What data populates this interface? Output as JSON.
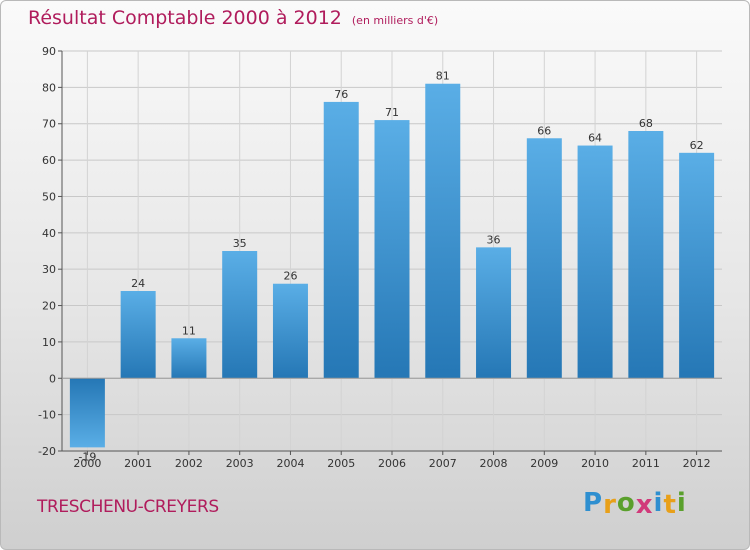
{
  "chart_data": {
    "type": "bar",
    "title": "Résultat Comptable 2000 à 2012",
    "subtitle": "(en milliers d'€)",
    "categories": [
      "2000",
      "2001",
      "2002",
      "2003",
      "2004",
      "2005",
      "2006",
      "2007",
      "2008",
      "2009",
      "2010",
      "2011",
      "2012"
    ],
    "values": [
      -19,
      24,
      11,
      35,
      26,
      76,
      71,
      81,
      36,
      66,
      64,
      68,
      62
    ],
    "data_labels": [
      "-19",
      "24",
      "11",
      "35",
      "26",
      "76",
      "71",
      "81",
      "36",
      "66",
      "64",
      "68",
      "62"
    ],
    "ylim": [
      -20,
      90
    ],
    "yticks": [
      -20,
      -10,
      0,
      10,
      20,
      30,
      40,
      50,
      60,
      70,
      80,
      90
    ],
    "grid": true,
    "xlabel": "",
    "ylabel": "",
    "colors": {
      "bar_top": "#5aaee6",
      "bar_bottom": "#2577b5",
      "title": "#b01c5c"
    }
  },
  "commune": "TRESCHENU-CREYERS",
  "logo": {
    "letters": [
      {
        "ch": "P",
        "color": "#2e8fd0"
      },
      {
        "ch": "r",
        "color": "#e8a019"
      },
      {
        "ch": "o",
        "color": "#5aa02c"
      },
      {
        "ch": "x",
        "color": "#d13a7a"
      },
      {
        "ch": "i",
        "color": "#2e8fd0"
      },
      {
        "ch": "t",
        "color": "#e8a019"
      },
      {
        "ch": "i",
        "color": "#5aa02c"
      }
    ]
  }
}
